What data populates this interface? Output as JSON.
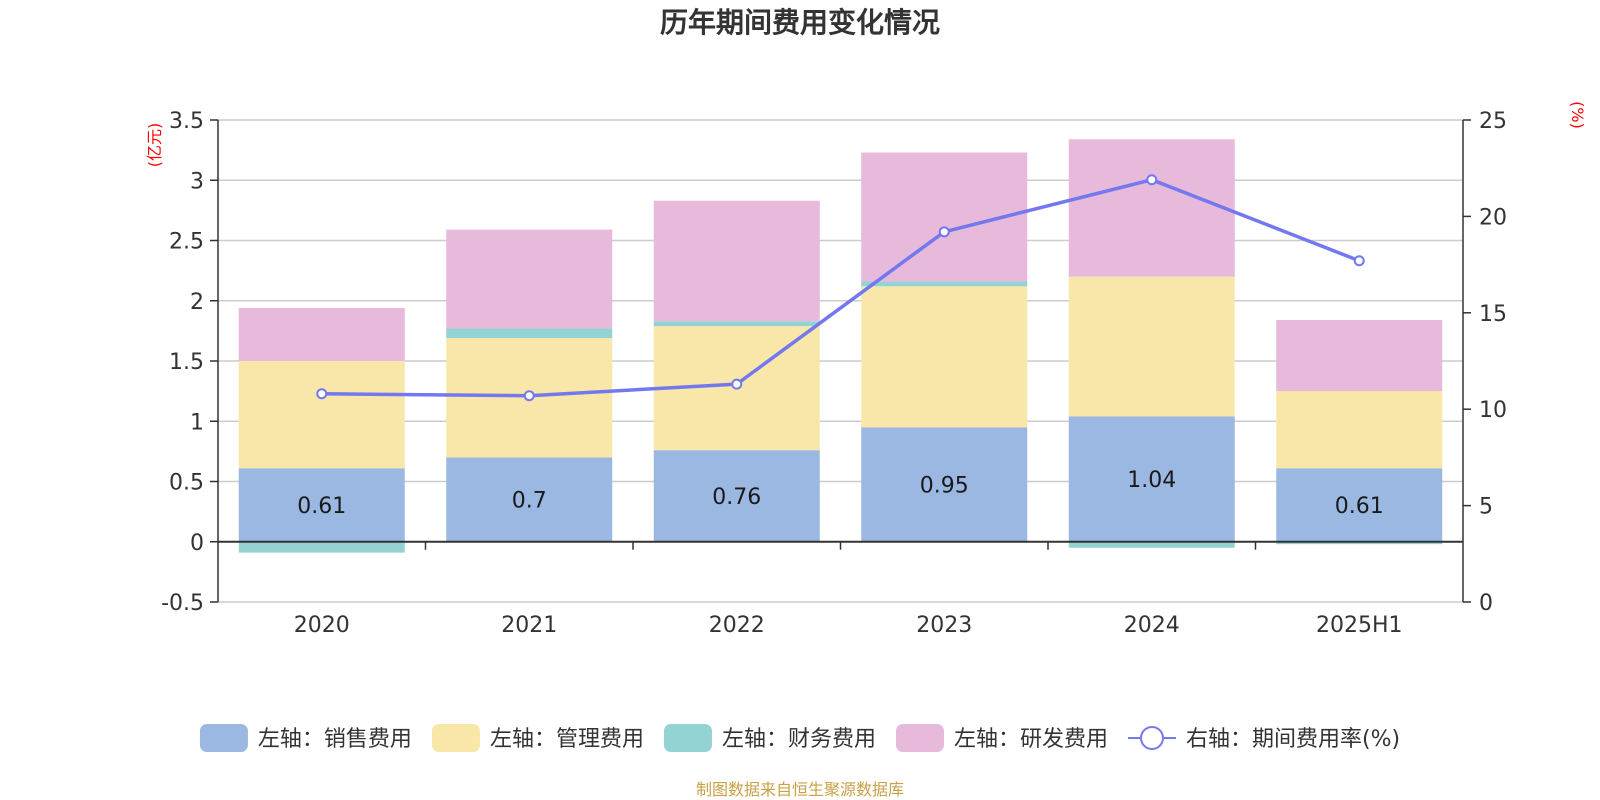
{
  "chart_data": {
    "type": "bar",
    "title": "历年期间费用变化情况",
    "categories": [
      "2020",
      "2021",
      "2022",
      "2023",
      "2024",
      "2025H1"
    ],
    "left_axis": {
      "unit": "(亿元)",
      "ylim": [
        -0.5,
        3.5
      ],
      "ticks": [
        3.5,
        3,
        2.5,
        2,
        1.5,
        1,
        0.5,
        0,
        -0.5
      ],
      "tick_labels": [
        "3.5",
        "3",
        "2.5",
        "2",
        "1.5",
        "1",
        "0.5",
        "0",
        "-0.5"
      ]
    },
    "right_axis": {
      "unit": "(%)",
      "ylim": [
        0,
        25
      ],
      "ticks": [
        25,
        20,
        15,
        10,
        5,
        0
      ],
      "tick_labels": [
        "25",
        "20",
        "15",
        "10",
        "5",
        "0"
      ]
    },
    "series": [
      {
        "name": "左轴：销售费用",
        "axis": "left",
        "kind": "bar",
        "color": "#9bb8e2",
        "values": [
          0.61,
          0.7,
          0.76,
          0.95,
          1.04,
          0.61
        ],
        "labels": [
          "0.61",
          "0.7",
          "0.76",
          "0.95",
          "1.04",
          "0.61"
        ]
      },
      {
        "name": "左轴：管理费用",
        "axis": "left",
        "kind": "bar",
        "color": "#f8e7a8",
        "values": [
          0.89,
          0.99,
          1.03,
          1.17,
          1.16,
          0.64
        ]
      },
      {
        "name": "左轴：财务费用",
        "axis": "left",
        "kind": "bar",
        "color": "#93d3d3",
        "values": [
          -0.09,
          0.08,
          0.04,
          0.04,
          -0.05,
          -0.02
        ]
      },
      {
        "name": "左轴：研发费用",
        "axis": "left",
        "kind": "bar",
        "color": "#e7b9da",
        "values": [
          0.44,
          0.82,
          1.0,
          1.07,
          1.14,
          0.59
        ]
      },
      {
        "name": "右轴：期间费用率(%)",
        "axis": "right",
        "kind": "line",
        "color": "#7378ee",
        "values": [
          10.8,
          10.7,
          11.3,
          19.2,
          21.9,
          17.7
        ]
      }
    ],
    "legend_position": "bottom",
    "grid": true
  },
  "footer": {
    "source": "制图数据来自恒生聚源数据库"
  }
}
